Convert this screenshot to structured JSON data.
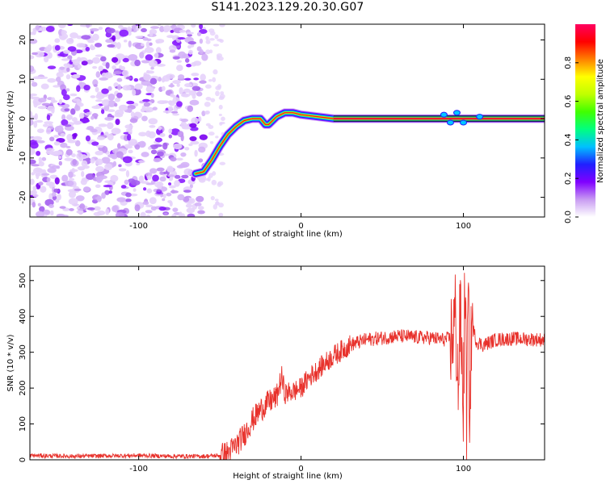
{
  "title": "S141.2023.129.20.30.G07",
  "chart_data": [
    {
      "type": "heatmap",
      "xlabel": "Height of straight line (km)",
      "ylabel": "Frequency (Hz)",
      "xlim": [
        -167,
        150
      ],
      "ylim": [
        -25,
        24
      ],
      "xticks": [
        -100,
        0,
        100
      ],
      "yticks": [
        -20,
        -10,
        0,
        10,
        20
      ],
      "colorbar": {
        "label": "Normalized spectral amplitude",
        "ticks": [
          0.0,
          0.2,
          0.4,
          0.6,
          0.8
        ],
        "range": [
          0,
          1
        ],
        "colormap": [
          "#ffffff",
          "#c89bf2",
          "#8000ff",
          "#2020ff",
          "#00c0ff",
          "#00ff80",
          "#40ff00",
          "#c0ff00",
          "#ffff00",
          "#ff8000",
          "#ff0000",
          "#ff0060"
        ]
      },
      "ridge": {
        "x": [
          -65,
          -60,
          -55,
          -50,
          -45,
          -40,
          -35,
          -30,
          -25,
          -22,
          -20,
          -15,
          -10,
          -5,
          0,
          10,
          20,
          40,
          60,
          80,
          90,
          100,
          110,
          120,
          150
        ],
        "y": [
          -14,
          -13.5,
          -10.5,
          -7,
          -4,
          -2,
          -0.5,
          0,
          0,
          -1.5,
          -1.5,
          0.5,
          1.5,
          1.5,
          1,
          0.5,
          0,
          0,
          0,
          0,
          0,
          0,
          0,
          0,
          0
        ]
      },
      "noise_region_x": [
        -167,
        -58
      ]
    },
    {
      "type": "line",
      "xlabel": "Height of straight line (km)",
      "ylabel": "SNR (10 * v/v)",
      "xlim": [
        -167,
        150
      ],
      "ylim": [
        0,
        540
      ],
      "xticks": [
        -100,
        0,
        100
      ],
      "yticks": [
        0,
        100,
        200,
        300,
        400,
        500
      ],
      "color": "#e8322c",
      "series": [
        {
          "x": [
            -167,
            -140,
            -100,
            -80,
            -60,
            -50,
            -45,
            -40,
            -35,
            -30,
            -25,
            -20,
            -15,
            -12,
            -10,
            -5,
            0,
            5,
            10,
            15,
            20,
            25,
            30,
            40,
            50,
            60,
            70,
            80,
            88,
            93,
            95,
            97,
            98,
            100,
            101,
            102,
            103,
            104,
            105,
            108,
            112,
            120,
            130,
            150
          ],
          "y": [
            12,
            10,
            12,
            10,
            10,
            12,
            20,
            40,
            70,
            110,
            140,
            160,
            175,
            230,
            185,
            190,
            200,
            230,
            250,
            270,
            290,
            305,
            320,
            335,
            340,
            345,
            342,
            340,
            335,
            340,
            400,
            200,
            420,
            150,
            530,
            120,
            460,
            100,
            380,
            330,
            320,
            335,
            338,
            335
          ]
        }
      ]
    }
  ]
}
